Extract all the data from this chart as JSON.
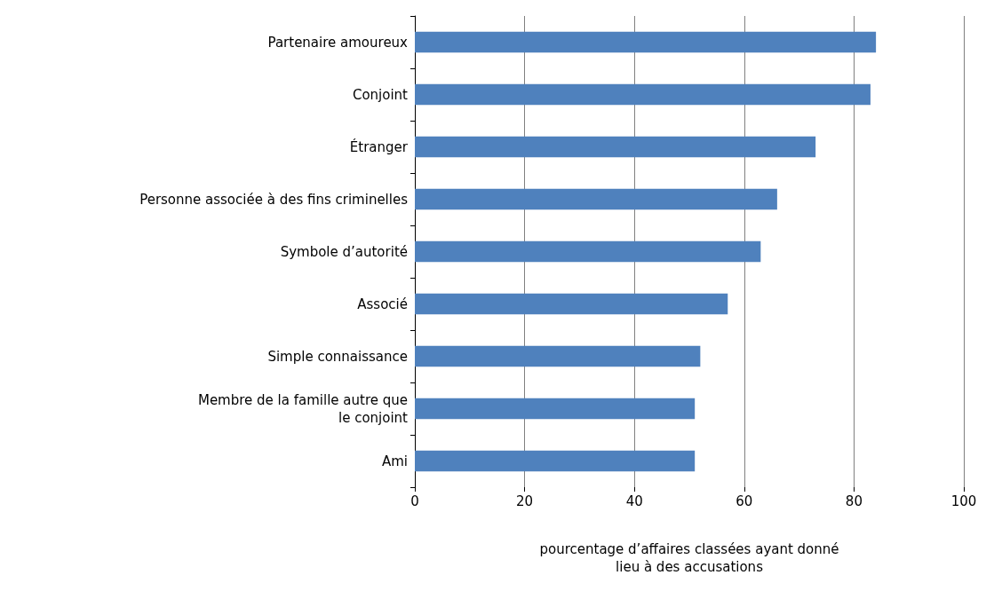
{
  "chart_data": {
    "type": "bar",
    "orientation": "horizontal",
    "categories": [
      "Partenaire amoureux",
      "Conjoint",
      "Étranger",
      "Personne associée à des fins criminelles",
      "Symbole d’autorité",
      "Associé",
      "Simple connaissance",
      "Membre de la famille autre que\nle conjoint",
      "Ami"
    ],
    "values": [
      84,
      83,
      73,
      66,
      63,
      57,
      52,
      51,
      51
    ],
    "color": "#4f81bd",
    "xlabel": "pourcentage d’affaires classées ayant donné\nlieu à des accusations",
    "xlim": [
      0,
      100
    ],
    "xticks": [
      0,
      20,
      40,
      60,
      80,
      100
    ],
    "grid": "x"
  }
}
